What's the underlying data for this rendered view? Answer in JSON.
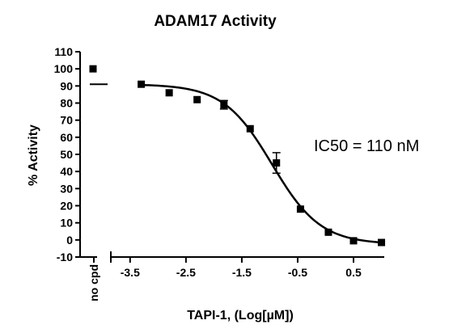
{
  "chart_data": {
    "type": "scatter",
    "title": "ADAM17 Activity",
    "xlabel": "TAPI-1, (Log[µM])",
    "ylabel": "% Activity",
    "annotation": "IC50 = 110 nM",
    "control_label": "no cpd",
    "control": {
      "mean": 100,
      "reference_line": 91
    },
    "xlim": [
      -3.7,
      1.05
    ],
    "ylim": [
      -10,
      110
    ],
    "x_ticks": [
      -3.5,
      -2.5,
      -1.5,
      -0.5,
      0.5
    ],
    "x_tick_labels": [
      "-3.5",
      "-2.5",
      "-1.5",
      "-0.5",
      "0.5"
    ],
    "y_ticks": [
      -10,
      0,
      10,
      20,
      30,
      40,
      50,
      60,
      70,
      80,
      90,
      100,
      110
    ],
    "y_tick_labels": [
      "-10",
      "0",
      "10",
      "20",
      "30",
      "40",
      "50",
      "60",
      "70",
      "80",
      "90",
      "100",
      "110"
    ],
    "series": [
      {
        "x": [
          -3.3,
          -2.8,
          -2.3,
          -1.82,
          -1.35,
          -0.88,
          -0.45,
          0.05,
          0.5,
          1.0
        ],
        "y": [
          91,
          86,
          82,
          79,
          65,
          45,
          18,
          4.5,
          -0.5,
          -1.5
        ],
        "error": [
          0,
          0,
          0,
          2.5,
          0,
          6,
          0,
          0,
          0,
          0
        ]
      }
    ],
    "fit": {
      "type": "sigmoidal dose-response",
      "top": 91,
      "bottom": -2.5,
      "log_ic50": -0.96,
      "hill_slope": -1.0
    }
  }
}
